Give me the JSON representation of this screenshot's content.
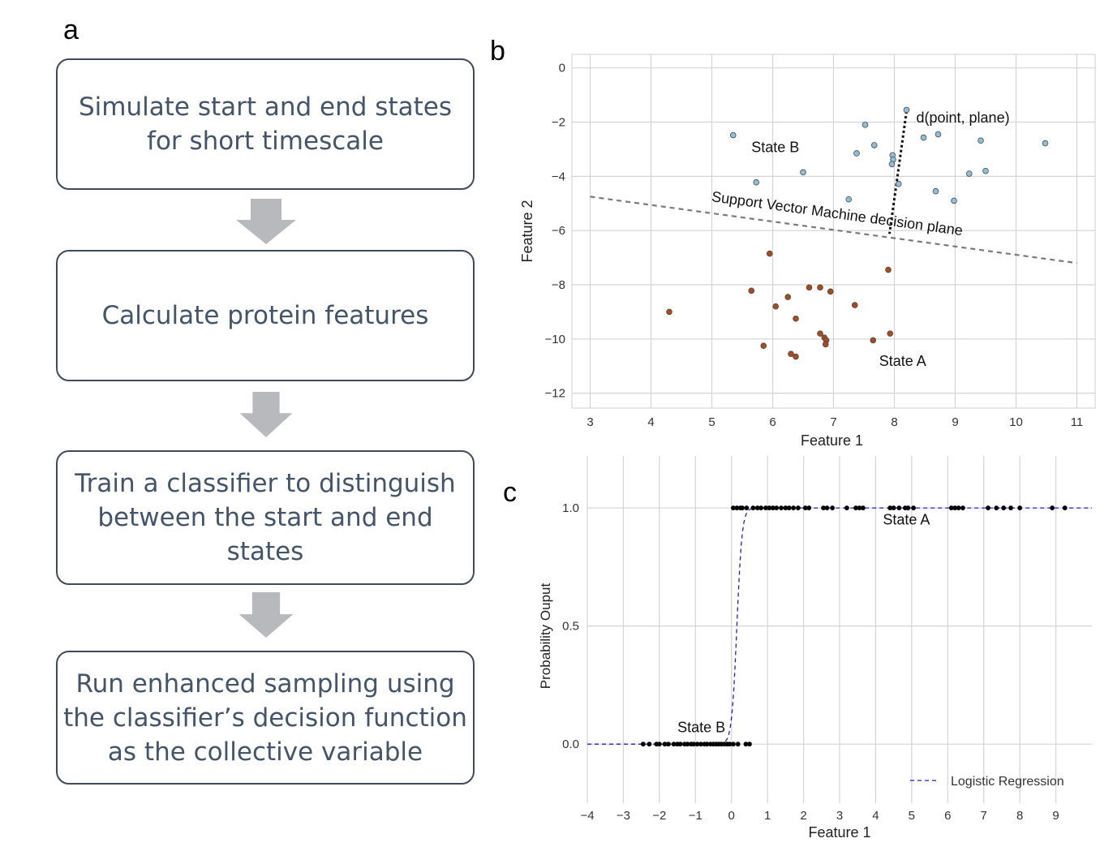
{
  "panel_a": {
    "letter": "a",
    "steps": [
      "Simulate start and end states\nfor short timescale",
      "Calculate protein features",
      "Train a classifier to distinguish\nbetween the start and end\nstates",
      "Run enhanced sampling using\nthe classifier’s decision function\nas the collective variable"
    ],
    "colors": {
      "text": "#44546a",
      "border": "#3f4a5c",
      "arrow": "#b7b9bd"
    }
  },
  "panel_b": {
    "letter": "b"
  },
  "panel_c": {
    "letter": "c"
  },
  "chart_data": [
    {
      "type": "scatter",
      "xlabel": "Feature 1",
      "ylabel": "Feature 2",
      "xlim": [
        2.7,
        11.3
      ],
      "ylim": [
        -12.55,
        0.5
      ],
      "xticks": [
        3,
        4,
        5,
        6,
        7,
        8,
        9,
        10,
        11
      ],
      "yticks": [
        0,
        -2,
        -4,
        -6,
        -8,
        -10,
        -12
      ],
      "grid": true,
      "series": [
        {
          "name": "State B",
          "color": "#8fbfd8",
          "points": [
            [
              8.2,
              -1.55
            ],
            [
              7.52,
              -2.1
            ],
            [
              5.35,
              -2.48
            ],
            [
              8.48,
              -2.57
            ],
            [
              8.72,
              -2.45
            ],
            [
              9.42,
              -2.68
            ],
            [
              10.48,
              -2.78
            ],
            [
              7.67,
              -2.85
            ],
            [
              7.38,
              -3.15
            ],
            [
              7.97,
              -3.22
            ],
            [
              7.98,
              -3.38
            ],
            [
              7.96,
              -3.55
            ],
            [
              6.5,
              -3.85
            ],
            [
              9.23,
              -3.9
            ],
            [
              9.5,
              -3.8
            ],
            [
              5.73,
              -4.22
            ],
            [
              8.07,
              -4.28
            ],
            [
              8.68,
              -4.55
            ],
            [
              7.25,
              -4.85
            ],
            [
              8.98,
              -4.9
            ]
          ]
        },
        {
          "name": "State A",
          "color": "#a94a1f",
          "points": [
            [
              5.95,
              -6.85
            ],
            [
              7.9,
              -7.45
            ],
            [
              6.6,
              -8.1
            ],
            [
              6.78,
              -8.1
            ],
            [
              6.95,
              -8.25
            ],
            [
              5.65,
              -8.22
            ],
            [
              6.25,
              -8.45
            ],
            [
              7.35,
              -8.75
            ],
            [
              6.05,
              -8.8
            ],
            [
              4.3,
              -9.0
            ],
            [
              6.38,
              -9.25
            ],
            [
              6.78,
              -9.8
            ],
            [
              7.93,
              -9.8
            ],
            [
              6.85,
              -9.95
            ],
            [
              6.88,
              -10.05
            ],
            [
              7.65,
              -10.05
            ],
            [
              6.87,
              -10.2
            ],
            [
              5.85,
              -10.25
            ],
            [
              6.3,
              -10.55
            ],
            [
              6.38,
              -10.65
            ]
          ]
        }
      ],
      "decision_plane": {
        "label": "Support Vector Machine decision plane",
        "from": [
          3,
          -4.75
        ],
        "to": [
          11,
          -7.2
        ]
      },
      "distance_line": {
        "label": "d(point, plane)",
        "from": [
          8.2,
          -1.6
        ],
        "to": [
          7.92,
          -6.12
        ]
      },
      "annotations": [
        {
          "text": "State B",
          "x": 5.65,
          "y": -3.1
        },
        {
          "text": "State A",
          "x": 7.75,
          "y": -11.0
        }
      ]
    },
    {
      "type": "line",
      "xlabel": "Feature 1",
      "ylabel": "Probability Ouput",
      "xlim": [
        -4,
        10
      ],
      "ylim": [
        -0.25,
        1.22
      ],
      "xticks": [
        -4,
        -3,
        -2,
        -1,
        0,
        1,
        2,
        3,
        4,
        5,
        6,
        7,
        8,
        9
      ],
      "yticks": [
        0.0,
        0.5,
        1.0
      ],
      "grid": true,
      "legend": {
        "position": "bottom-right",
        "entries": [
          "Logistic Regression"
        ]
      },
      "logistic_regression": {
        "name": "Logistic Regression",
        "color": "#1e1ecc",
        "midpoint": 0.15,
        "steepness": 14
      },
      "points_state_b": [
        -2.45,
        -2.28,
        -2.08,
        -2.0,
        -1.85,
        -1.75,
        -1.6,
        -1.5,
        -1.42,
        -1.3,
        -1.22,
        -1.12,
        -1.05,
        -0.95,
        -0.85,
        -0.75,
        -0.68,
        -0.58,
        -0.5,
        -0.42,
        -0.35,
        -0.28,
        -0.2,
        -0.12,
        -0.05,
        0.05,
        0.18,
        0.4,
        0.5
      ],
      "points_state_a": [
        0.05,
        0.15,
        0.25,
        0.3,
        0.42,
        0.6,
        0.72,
        0.82,
        0.95,
        1.05,
        1.15,
        1.25,
        1.38,
        1.5,
        1.6,
        1.72,
        1.85,
        2.05,
        2.15,
        2.55,
        2.65,
        2.8,
        3.2,
        3.45,
        3.55,
        3.65,
        4.4,
        4.5,
        4.65,
        4.82,
        4.9,
        5.05,
        6.1,
        6.2,
        6.3,
        6.42,
        7.12,
        7.35,
        7.55,
        7.75,
        8.0,
        8.9,
        9.25
      ],
      "annotations": [
        {
          "text": "State A",
          "x": 4.2,
          "y": 0.93
        },
        {
          "text": "State B",
          "x": -1.5,
          "y": 0.05
        }
      ]
    }
  ]
}
